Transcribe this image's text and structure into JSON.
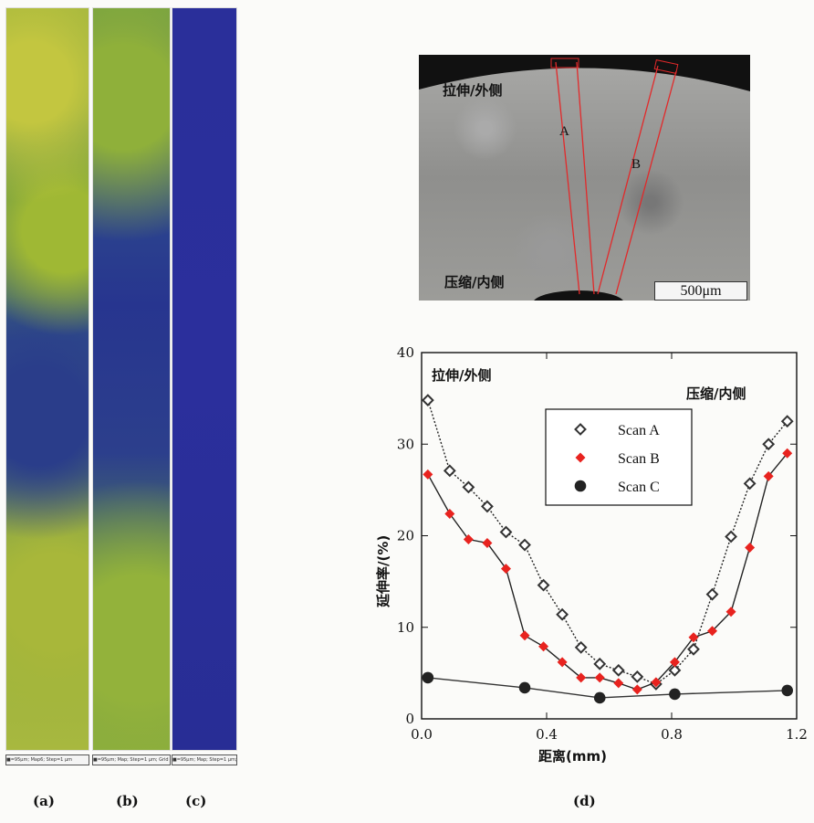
{
  "panels": {
    "a": "(a)",
    "b": "(b)",
    "c": "(c)",
    "d": "(d)"
  },
  "strips": {
    "scale_a": "■=95μm; Map6; Step=1 μm",
    "scale_b": "■=95μm; Map; Step=1 μm; Grid",
    "scale_c": "■=95μm; Map; Step=1 μm; Grid"
  },
  "micrograph": {
    "top_label": "拉伸/外侧",
    "bottom_label": "压缩/内侧",
    "scan_a_label": "A",
    "scan_b_label": "B",
    "scale_bar": "500μm"
  },
  "chart_data": {
    "type": "line",
    "xlabel": "距离(mm)",
    "ylabel": "延伸率/(%)",
    "xlim": [
      0.0,
      1.2
    ],
    "ylim": [
      0,
      40
    ],
    "xticks": [
      "0.0",
      "0.4",
      "0.8",
      "1.2"
    ],
    "yticks": [
      "0",
      "10",
      "20",
      "30",
      "40"
    ],
    "annotation_left": "拉伸/外侧",
    "annotation_right": "压缩/内侧",
    "legend_position": "top-right",
    "series": [
      {
        "name": "Scan A",
        "marker": "open-diamond",
        "color": "#333333",
        "line": "dotted",
        "x": [
          0.02,
          0.09,
          0.15,
          0.21,
          0.27,
          0.33,
          0.39,
          0.45,
          0.51,
          0.57,
          0.63,
          0.69,
          0.75,
          0.81,
          0.87,
          0.93,
          0.99,
          1.05,
          1.11,
          1.17
        ],
        "y": [
          34.8,
          27.1,
          25.3,
          23.2,
          20.4,
          19.0,
          14.6,
          11.4,
          7.8,
          6.0,
          5.3,
          4.6,
          3.8,
          5.3,
          7.6,
          13.6,
          19.9,
          25.7,
          30.0,
          32.5
        ]
      },
      {
        "name": "Scan B",
        "marker": "filled-diamond",
        "color": "#e8231f",
        "line": "solid",
        "x": [
          0.02,
          0.09,
          0.15,
          0.21,
          0.27,
          0.33,
          0.39,
          0.45,
          0.51,
          0.57,
          0.63,
          0.69,
          0.75,
          0.81,
          0.87,
          0.93,
          0.99,
          1.05,
          1.11,
          1.17
        ],
        "y": [
          26.7,
          22.4,
          19.6,
          19.2,
          16.4,
          9.1,
          7.9,
          6.2,
          4.5,
          4.5,
          3.9,
          3.2,
          4.0,
          6.2,
          8.9,
          9.6,
          11.7,
          18.7,
          26.5,
          29.0
        ]
      },
      {
        "name": "Scan C",
        "marker": "filled-circle",
        "color": "#222222",
        "line": "solid",
        "x": [
          0.02,
          0.33,
          0.57,
          0.81,
          1.17
        ],
        "y": [
          4.5,
          3.4,
          2.3,
          2.7,
          3.1
        ]
      }
    ]
  }
}
